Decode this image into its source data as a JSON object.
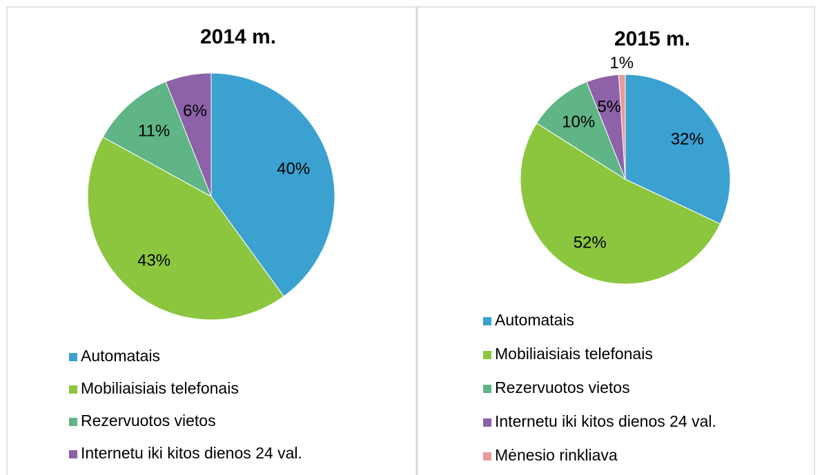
{
  "chart_data": [
    {
      "type": "pie",
      "title": "2014 m.",
      "categories": [
        "Automatais",
        "Mobiliaisiais telefonais",
        "Rezervuotos vietos",
        "Internetu iki kitos dienos 24 val."
      ],
      "values": [
        40,
        43,
        11,
        6
      ],
      "value_labels": [
        "40%",
        "43%",
        "11%",
        "6%"
      ],
      "colors": [
        "#3ba1d1",
        "#8cc63f",
        "#5fb585",
        "#8d62a9"
      ]
    },
    {
      "type": "pie",
      "title": "2015 m.",
      "categories": [
        "Automatais",
        "Mobiliaisiais telefonais",
        "Rezervuotos vietos",
        "Internetu iki kitos dienos 24 val.",
        "Mėnesio rinkliava"
      ],
      "values": [
        32,
        52,
        10,
        5,
        1
      ],
      "value_labels": [
        "32%",
        "52%",
        "10%",
        "5%",
        "1%"
      ],
      "colors": [
        "#3ba1d1",
        "#8cc63f",
        "#5fb585",
        "#8d62a9",
        "#e89a9a"
      ]
    }
  ]
}
